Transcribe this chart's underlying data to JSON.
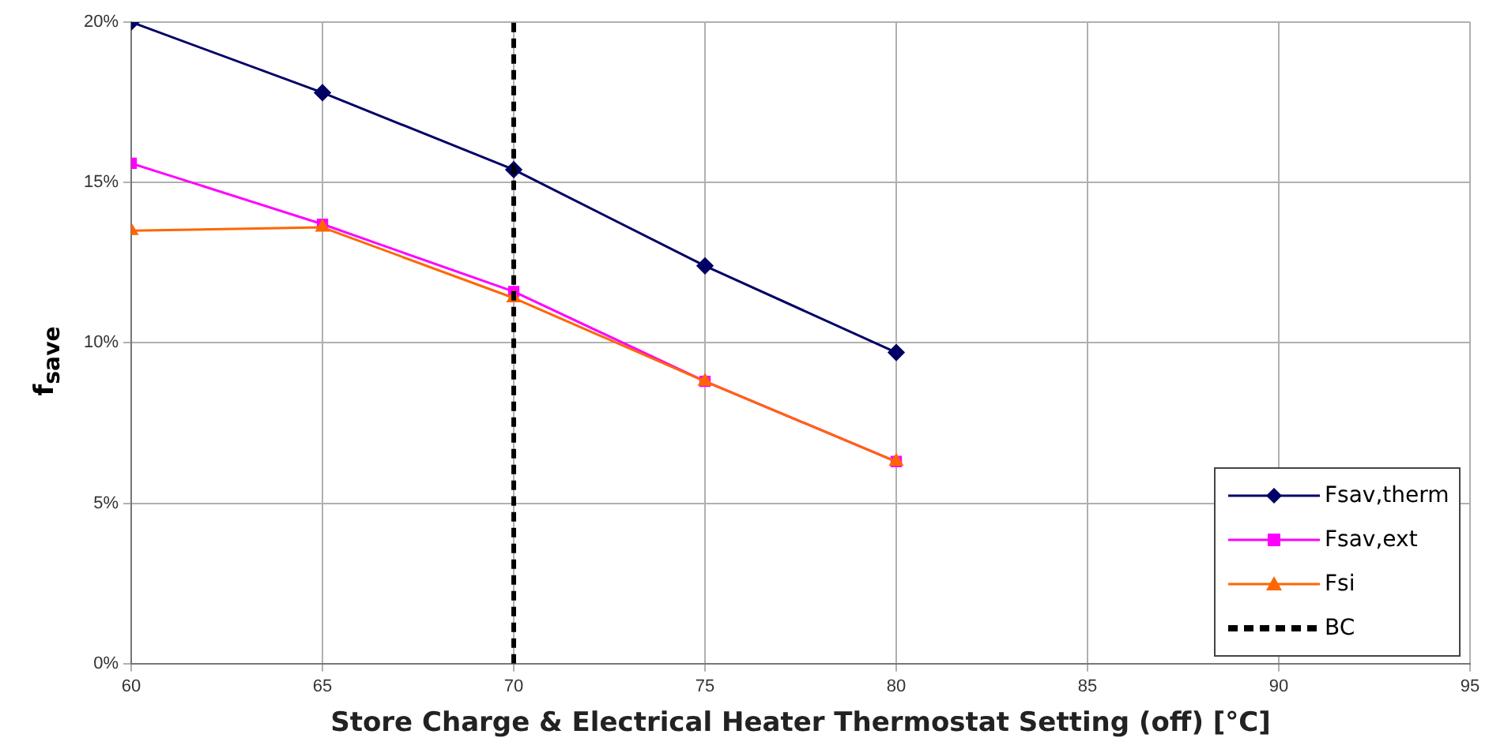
{
  "chart_data": {
    "type": "line",
    "xlabel": "Store Charge & Electrical Heater Thermostat Setting (off) [°C]",
    "ylabel": "f$_{save}$",
    "x": [
      60,
      65,
      70,
      75,
      80
    ],
    "series": [
      {
        "name": "Fsav,therm",
        "color": "#000066",
        "marker": "diamond",
        "values": [
          20,
          17.8,
          15.4,
          12.4,
          9.7
        ]
      },
      {
        "name": "Fsav,ext",
        "color": "#ff00ff",
        "marker": "square",
        "values": [
          15.6,
          13.7,
          11.6,
          8.8,
          6.3
        ]
      },
      {
        "name": "Fsi",
        "color": "#ff6600",
        "marker": "triangle",
        "values": [
          13.5,
          13.6,
          11.4,
          8.8,
          6.3
        ]
      },
      {
        "name": "BC",
        "color": "#000000",
        "marker": "none",
        "line_style": "dashed",
        "x": [
          70,
          70
        ],
        "values": [
          0,
          20
        ]
      }
    ],
    "xlim": [
      60,
      95
    ],
    "xticks": [
      60,
      65,
      70,
      75,
      80,
      85,
      90,
      95
    ],
    "ylim": [
      0,
      20
    ],
    "yticks": [
      {
        "value": 0,
        "label": "0%"
      },
      {
        "value": 5,
        "label": "5%"
      },
      {
        "value": 10,
        "label": "10%"
      },
      {
        "value": 15,
        "label": "15%"
      },
      {
        "value": 20,
        "label": "20%"
      }
    ],
    "grid": true,
    "legend": "bottom right",
    "line_style": "solid"
  }
}
